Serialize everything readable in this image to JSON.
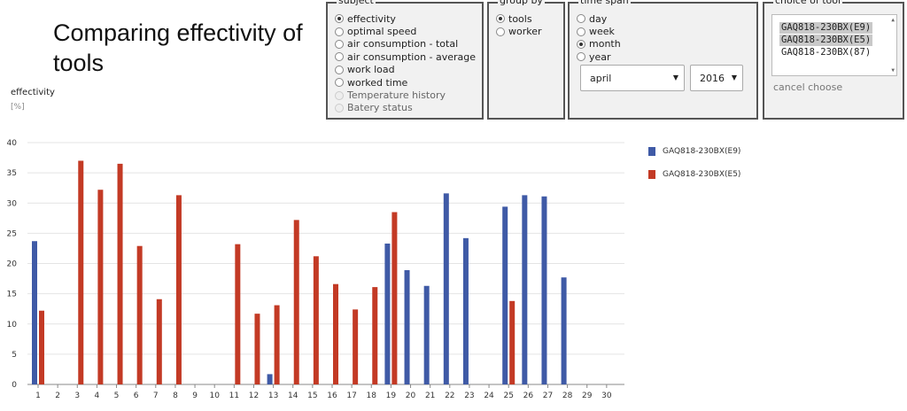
{
  "page": {
    "title": "Comparing effectivity of tools"
  },
  "subject": {
    "legend": "subject",
    "options": [
      {
        "label": "effectivity",
        "checked": true,
        "disabled": false
      },
      {
        "label": "optimal speed",
        "checked": false,
        "disabled": false
      },
      {
        "label": "air consumption - total",
        "checked": false,
        "disabled": false
      },
      {
        "label": "air consumption - average",
        "checked": false,
        "disabled": false
      },
      {
        "label": "work load",
        "checked": false,
        "disabled": false
      },
      {
        "label": "worked time",
        "checked": false,
        "disabled": false
      },
      {
        "label": "Temperature history",
        "checked": false,
        "disabled": true
      },
      {
        "label": "Batery status",
        "checked": false,
        "disabled": true
      }
    ]
  },
  "group_by": {
    "legend": "group by",
    "options": [
      {
        "label": "tools",
        "checked": true
      },
      {
        "label": "worker",
        "checked": false
      }
    ]
  },
  "time_span": {
    "legend": "time span",
    "options": [
      {
        "label": "day",
        "checked": false
      },
      {
        "label": "week",
        "checked": false
      },
      {
        "label": "month",
        "checked": true
      },
      {
        "label": "year",
        "checked": false
      }
    ],
    "month_value": "april",
    "year_value": "2016"
  },
  "tool_choice": {
    "legend": "choice of tool",
    "items": [
      {
        "label": "GAQ818-230BX(E9)",
        "selected": true
      },
      {
        "label": "GAQ818-230BX(E5)",
        "selected": true
      },
      {
        "label": "GAQ818-230BX(87)",
        "selected": false
      }
    ],
    "cancel_label": "cancel choose"
  },
  "chart_data": {
    "type": "bar",
    "title": "",
    "ylabel": "effectivity",
    "yunit": "[%]",
    "ylim": [
      0,
      40
    ],
    "yticks": [
      0,
      5,
      10,
      15,
      20,
      25,
      30,
      35,
      40
    ],
    "grid": true,
    "legend_position": "right",
    "categories": [
      "1",
      "2",
      "3",
      "4",
      "5",
      "6",
      "7",
      "8",
      "9",
      "10",
      "11",
      "12",
      "13",
      "14",
      "15",
      "16",
      "17",
      "18",
      "19",
      "20",
      "21",
      "22",
      "23",
      "24",
      "25",
      "26",
      "27",
      "28",
      "29",
      "30"
    ],
    "series": [
      {
        "name": "GAQ818-230BX(E9)",
        "color": "#3f5aa6",
        "values": [
          23.7,
          0,
          0,
          0,
          0,
          0,
          0,
          0,
          0,
          0,
          0,
          0,
          1.7,
          0,
          0,
          0,
          0,
          0,
          23.3,
          18.9,
          16.3,
          31.6,
          24.2,
          0,
          29.4,
          31.3,
          31.1,
          17.7,
          0,
          0
        ]
      },
      {
        "name": "GAQ818-230BX(E5)",
        "color": "#c33a25",
        "values": [
          12.2,
          0,
          37.0,
          32.2,
          36.5,
          22.9,
          14.1,
          31.3,
          0,
          0,
          23.2,
          11.7,
          13.1,
          27.2,
          21.2,
          16.6,
          12.4,
          16.1,
          28.5,
          0,
          0,
          0,
          0,
          0,
          13.8,
          0,
          0,
          0,
          0,
          0
        ]
      }
    ]
  }
}
